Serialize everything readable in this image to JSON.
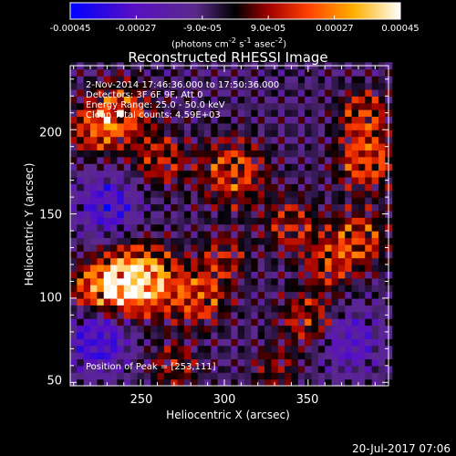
{
  "chart_data": {
    "type": "heatmap",
    "title": "Reconstructed RHESSI Image",
    "info_lines": [
      " 2-Nov-2014 17:46:36.000 to 17:50:36.000",
      "Detectors: 3F 6F 9F, Att 0",
      "Energy Range: 25.0 - 50.0 keV",
      "Clean    Total counts: 4.59E+03"
    ],
    "peak_text": "Position of Peak = [253,111]",
    "xlabel": "Heliocentric X (arcsec)",
    "ylabel": "Heliocentric Y (arcsec)",
    "xlim": [
      208,
      398
    ],
    "ylim": [
      48,
      238
    ],
    "x_ticks": [
      "250",
      "300",
      "350"
    ],
    "x_tick_values": [
      250,
      300,
      350
    ],
    "y_ticks": [
      "200",
      "150",
      "100",
      "50"
    ],
    "y_tick_values": [
      200,
      150,
      100,
      50
    ],
    "colorbar": {
      "range": [
        -0.00045,
        0.00045
      ],
      "tick_labels": [
        "-0.00045",
        "-0.00027",
        "-9.0e-05",
        "9.0e-05",
        "0.00027",
        "0.00045"
      ],
      "tick_values": [
        -0.00045,
        -0.00027,
        -9e-05,
        9e-05,
        0.00027,
        0.00045
      ],
      "units_text": "(photons cm",
      "units_sup1": "-2",
      "units_mid": " s",
      "units_sup2": "-1",
      "units_end": " asec",
      "units_sup3": "-2",
      "units_close": ")"
    },
    "blobs": [
      {
        "x": 253,
        "y": 111,
        "amp": 1.0,
        "r": 14
      },
      {
        "x": 240,
        "y": 110,
        "amp": 0.9,
        "r": 12
      },
      {
        "x": 285,
        "y": 101,
        "amp": 0.75,
        "r": 12
      },
      {
        "x": 223,
        "y": 107,
        "amp": 0.8,
        "r": 10
      },
      {
        "x": 238,
        "y": 210,
        "amp": 0.8,
        "r": 13
      },
      {
        "x": 222,
        "y": 200,
        "amp": 0.65,
        "r": 10
      },
      {
        "x": 262,
        "y": 182,
        "amp": 0.6,
        "r": 11
      },
      {
        "x": 305,
        "y": 175,
        "amp": 0.75,
        "r": 14
      },
      {
        "x": 385,
        "y": 182,
        "amp": 0.85,
        "r": 12
      },
      {
        "x": 383,
        "y": 210,
        "amp": 0.7,
        "r": 10
      },
      {
        "x": 380,
        "y": 135,
        "amp": 0.75,
        "r": 12
      },
      {
        "x": 362,
        "y": 120,
        "amp": 0.55,
        "r": 10
      },
      {
        "x": 350,
        "y": 88,
        "amp": 0.6,
        "r": 12
      },
      {
        "x": 340,
        "y": 143,
        "amp": 0.55,
        "r": 12
      },
      {
        "x": 270,
        "y": 60,
        "amp": 0.5,
        "r": 10
      },
      {
        "x": 330,
        "y": 58,
        "amp": 0.45,
        "r": 9
      },
      {
        "x": 300,
        "y": 125,
        "amp": 0.5,
        "r": 10
      },
      {
        "x": 225,
        "y": 75,
        "amp": -0.8,
        "r": 12
      },
      {
        "x": 230,
        "y": 155,
        "amp": -0.7,
        "r": 12
      },
      {
        "x": 375,
        "y": 75,
        "amp": -0.6,
        "r": 12
      }
    ]
  },
  "footer": {
    "date": "20-Jul-2017 07:06"
  }
}
